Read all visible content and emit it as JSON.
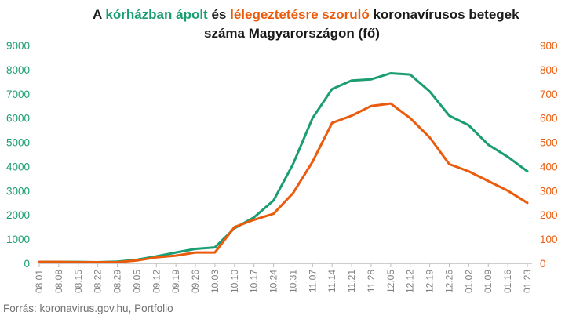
{
  "title": {
    "part1": "A ",
    "green_phrase": "kórházban ápolt",
    "part2": " és ",
    "orange_phrase": "lélegeztetésre szoruló",
    "part3": " koronavírusos betegek",
    "line2": "száma Magyarországon  (fő)"
  },
  "source": "Forrás: koronavirus.gov.hu, Portfolio",
  "colors": {
    "hospitalized": "#1a9d72",
    "ventilated": "#ea5b0c",
    "axis": "#bdbdbd"
  },
  "chart_data": {
    "type": "line",
    "x": [
      "08.01",
      "08.08",
      "08.15",
      "08.22",
      "08.29",
      "09.05",
      "09.12",
      "09.19",
      "09.26",
      "10.03",
      "10.10",
      "10.17",
      "10.24",
      "10.31",
      "11.07",
      "11.14",
      "11.21",
      "11.28",
      "12.05",
      "12.12",
      "12.19",
      "12.26",
      "01.02",
      "01.09",
      "01.16",
      "01.23"
    ],
    "x_tick_labels": [
      "08.01",
      "08.08",
      "08.15",
      "08.22",
      "08.29",
      "09.05",
      "09.12",
      "09.19",
      "09.26",
      "10.03",
      "10.10",
      "10.17",
      "10.24",
      "10.31",
      "11.07",
      "11.14",
      "11.21",
      "11.28",
      "12.05",
      "12.12",
      "12.19",
      "12.26",
      "01.02",
      "01.09",
      "01.16",
      "01.23"
    ],
    "y_left": {
      "min": 0,
      "max": 9000,
      "ticks": [
        0,
        1000,
        2000,
        3000,
        4000,
        5000,
        6000,
        7000,
        8000,
        9000
      ]
    },
    "y_right": {
      "min": 0,
      "max": 900,
      "ticks": [
        0,
        100,
        200,
        300,
        400,
        500,
        600,
        700,
        800,
        900
      ]
    },
    "series": [
      {
        "name": "kórházban ápolt",
        "axis": "left",
        "color": "#1a9d72",
        "values": [
          60,
          60,
          60,
          50,
          70,
          150,
          290,
          450,
          600,
          660,
          1450,
          1900,
          2600,
          4100,
          6000,
          7200,
          7550,
          7600,
          7850,
          7800,
          7100,
          6100,
          5700,
          4900,
          4400,
          3800
        ]
      },
      {
        "name": "lélegeztetésre szoruló",
        "axis": "right",
        "color": "#ea5b0c",
        "values": [
          6,
          6,
          5,
          5,
          5,
          12,
          25,
          32,
          45,
          45,
          150,
          180,
          205,
          290,
          420,
          580,
          610,
          650,
          660,
          600,
          520,
          410,
          380,
          340,
          300,
          250
        ]
      }
    ],
    "grid": false,
    "legend": "none"
  }
}
